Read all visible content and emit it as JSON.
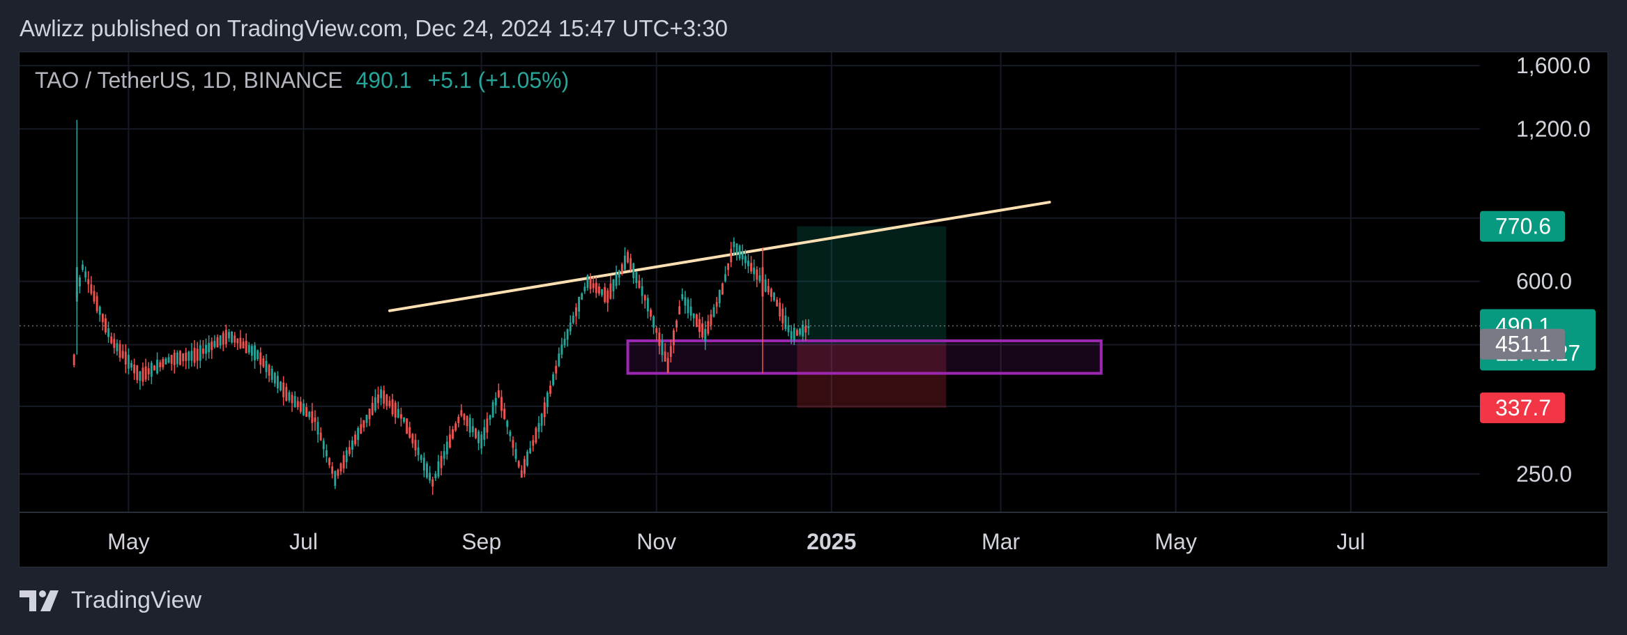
{
  "header": {
    "published_by": "Awlizz published on TradingView.com, Dec 24, 2024 15:47 UTC+3:30"
  },
  "symbol_bar": {
    "symbol": "TAO / TetherUS, 1D, BINANCE",
    "price": "490.1",
    "change": "+5.1 (+1.05%)"
  },
  "footer": {
    "brand": "TradingView",
    "logo_icon": "tradingview-logo-icon"
  },
  "colors": {
    "up": "#26a69a",
    "down": "#ef5350",
    "trendline": "#ffe0b2",
    "zone": "#9c27b0",
    "target": "#089981",
    "stop": "#f23645"
  },
  "chart_data": {
    "type": "candlestick",
    "title": "TAO / TetherUS, 1D, BINANCE",
    "x_axis": {
      "tick_labels": [
        "May",
        "Jul",
        "Sep",
        "Nov",
        "2025",
        "Mar",
        "May",
        "Jul"
      ],
      "range": [
        "2024-03-24",
        "2025-08-15"
      ]
    },
    "y_axis": {
      "scale": "log",
      "tick_labels": [
        "1,600.0",
        "1,200.0",
        "600.0",
        "250.0"
      ],
      "tick_values": [
        1600,
        1200,
        600,
        250
      ],
      "range": [
        210,
        1700
      ]
    },
    "price_labels": [
      {
        "value": "770.6",
        "kind": "target"
      },
      {
        "value": "490.1",
        "countdown": "11:42:27",
        "kind": "last"
      },
      {
        "value": "451.1",
        "kind": "entry"
      },
      {
        "value": "337.7",
        "kind": "stop"
      }
    ],
    "last_price": 490.1,
    "trendline": {
      "start": [
        "2024-07-31",
        525
      ],
      "end": [
        "2025-03-18",
        860
      ]
    },
    "demand_zone": {
      "x_start": "2024-10-22",
      "x_end": "2025-04-05",
      "y_low": 395,
      "y_high": 458
    },
    "long_position": {
      "x_start": "2024-12-20",
      "x_end": "2025-02-10",
      "entry": 451.1,
      "target": 770.6,
      "stop": 337.7
    },
    "grid": true,
    "ohlc_anchors": [
      [
        "2024-04-12",
        420,
        560
      ],
      [
        "2024-04-13",
        560,
        1250
      ],
      [
        "2024-04-15",
        640,
        470
      ],
      [
        "2024-04-25",
        460,
        420
      ],
      [
        "2024-05-05",
        390,
        470
      ],
      [
        "2024-05-15",
        420,
        360
      ],
      [
        "2024-05-25",
        430,
        480
      ],
      [
        "2024-06-05",
        470,
        420
      ],
      [
        "2024-06-15",
        430,
        380
      ],
      [
        "2024-06-25",
        360,
        320
      ],
      [
        "2024-07-05",
        320,
        260
      ],
      [
        "2024-07-12",
        245,
        290
      ],
      [
        "2024-07-20",
        300,
        360
      ],
      [
        "2024-07-28",
        360,
        320
      ],
      [
        "2024-08-05",
        320,
        225
      ],
      [
        "2024-08-15",
        240,
        330
      ],
      [
        "2024-08-25",
        330,
        290
      ],
      [
        "2024-09-01",
        290,
        360
      ],
      [
        "2024-09-07",
        360,
        250
      ],
      [
        "2024-09-15",
        250,
        310
      ],
      [
        "2024-09-22",
        320,
        440
      ],
      [
        "2024-09-29",
        440,
        600
      ],
      [
        "2024-10-08",
        600,
        560
      ],
      [
        "2024-10-15",
        560,
        670
      ],
      [
        "2024-10-22",
        670,
        560
      ],
      [
        "2024-10-29",
        540,
        410
      ],
      [
        "2024-11-05",
        410,
        540
      ],
      [
        "2024-11-10",
        560,
        470
      ],
      [
        "2024-11-18",
        470,
        580
      ],
      [
        "2024-11-24",
        580,
        700
      ],
      [
        "2024-11-28",
        710,
        640
      ],
      [
        "2024-12-04",
        640,
        560
      ],
      [
        "2024-12-12",
        560,
        460
      ],
      [
        "2024-12-18",
        470,
        440
      ],
      [
        "2024-12-24",
        485,
        490.1
      ]
    ]
  }
}
